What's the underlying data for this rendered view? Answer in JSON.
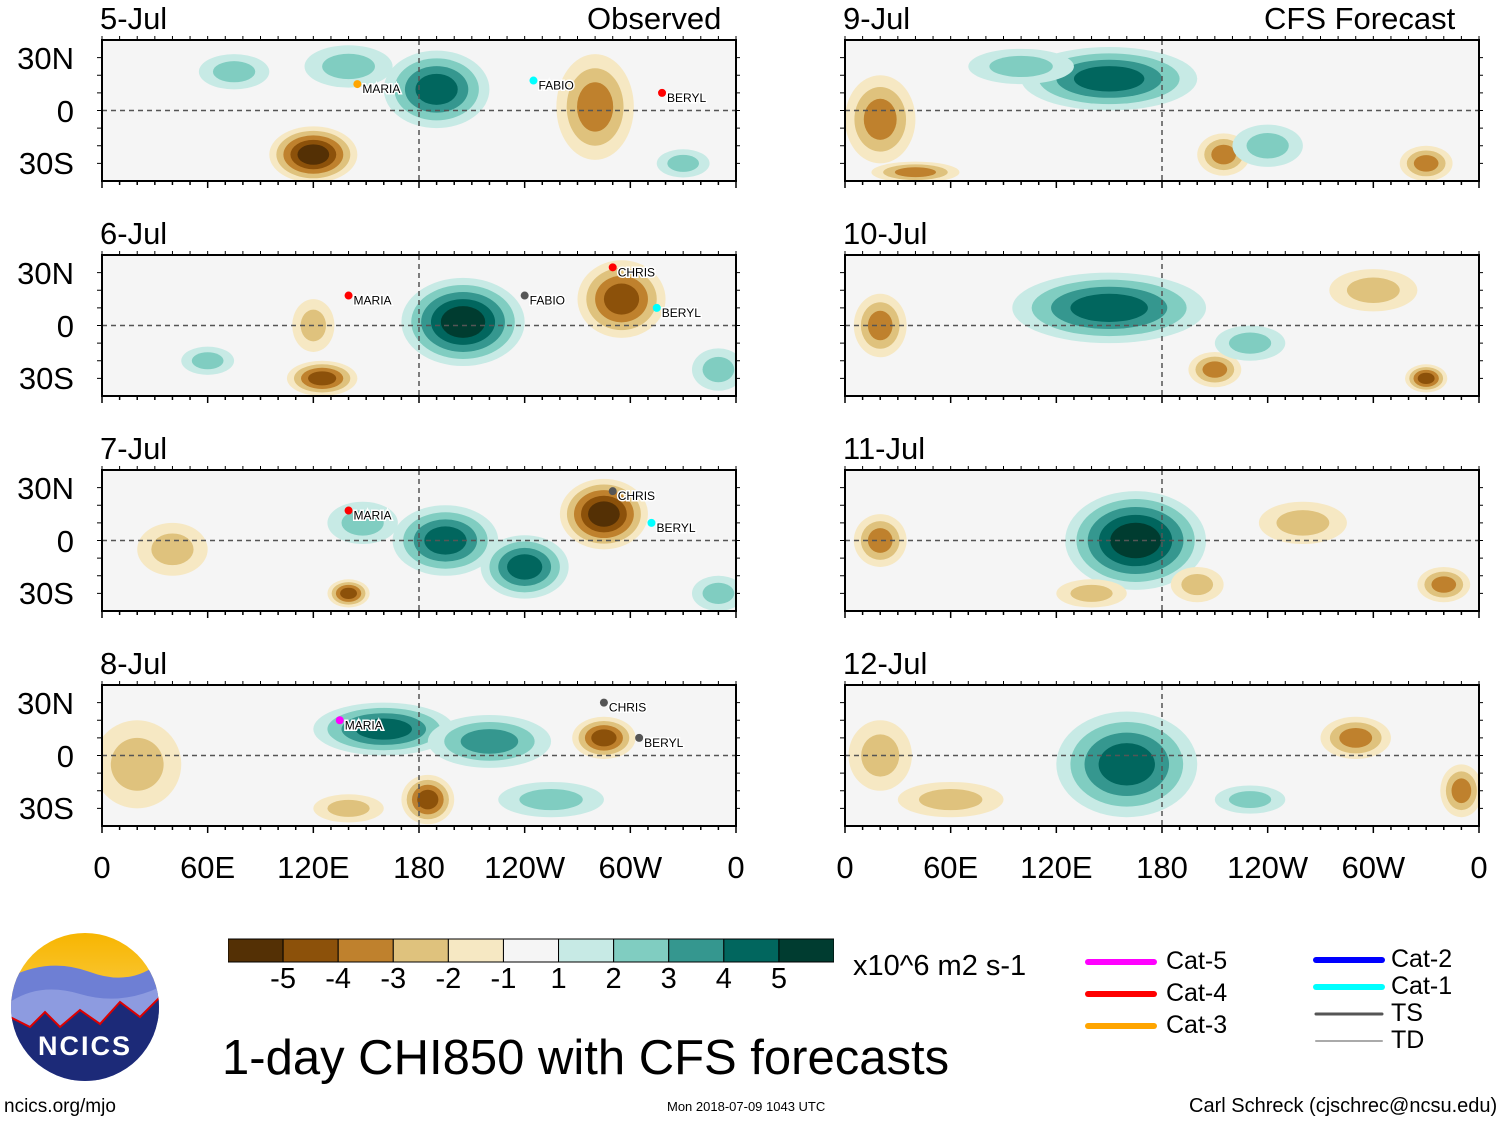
{
  "headers": {
    "observed": "Observed",
    "forecast": "CFS Forecast"
  },
  "y_ticks": [
    "30N",
    "0",
    "30S"
  ],
  "x_ticks": [
    "0",
    "60E",
    "120E",
    "180",
    "120W",
    "60W",
    "0"
  ],
  "colorbar": {
    "labels": [
      "-5",
      "-4",
      "-3",
      "-2",
      "-1",
      "1",
      "2",
      "3",
      "4",
      "5"
    ],
    "colors": [
      "#543005",
      "#8c510a",
      "#bf812d",
      "#dfc27d",
      "#f6e8c3",
      "#f5f5f5",
      "#c7eae5",
      "#80cdc1",
      "#35978f",
      "#01665e",
      "#003c30"
    ],
    "units": "x10^6 m2 s-1"
  },
  "title": "1-day CHI850 with CFS forecasts",
  "logo_text": "NCICS",
  "footer": {
    "left": "ncics.org/mjo",
    "center": "Mon 2018-07-09 1043 UTC",
    "right": "Carl Schreck (cjschrec@ncsu.edu)"
  },
  "storm_legend": [
    {
      "label": "Cat-5",
      "color": "#ff00ff"
    },
    {
      "label": "Cat-4",
      "color": "#ff0000"
    },
    {
      "label": "Cat-3",
      "color": "#ffa500"
    },
    {
      "label": "Cat-2",
      "color": "#0000ff"
    },
    {
      "label": "Cat-1",
      "color": "#00ffff"
    },
    {
      "label": "TS",
      "color": "#555555"
    },
    {
      "label": "TD",
      "color": "#aaaaaa"
    }
  ],
  "chart_data": {
    "type": "heatmap",
    "variable": "850-hPa velocity potential anomaly",
    "lon_range": [
      0,
      360
    ],
    "lat_range": [
      -40,
      40
    ],
    "panels": [
      {
        "date": "5-Jul",
        "kind": "observed",
        "blobs": [
          [
            190,
            12,
            30,
            22,
            4
          ],
          [
            120,
            -25,
            25,
            16,
            -5
          ],
          [
            280,
            2,
            22,
            30,
            -3
          ],
          [
            75,
            22,
            20,
            10,
            2
          ],
          [
            140,
            25,
            25,
            12,
            2
          ],
          [
            330,
            -30,
            15,
            8,
            1.5
          ]
        ],
        "storms": [
          {
            "name": "MARIA",
            "lon": 145,
            "lat": 15,
            "color": "#ffa500"
          },
          {
            "name": "FABIO",
            "lon": 245,
            "lat": 17,
            "color": "#00ffff"
          },
          {
            "name": "BERYL",
            "lon": 318,
            "lat": 10,
            "color": "#ff0000"
          }
        ]
      },
      {
        "date": "6-Jul",
        "kind": "observed",
        "blobs": [
          [
            205,
            2,
            35,
            25,
            5
          ],
          [
            295,
            15,
            25,
            22,
            -4
          ],
          [
            125,
            -30,
            20,
            10,
            -4
          ],
          [
            120,
            0,
            12,
            15,
            -2
          ],
          [
            60,
            -20,
            15,
            8,
            1.5
          ],
          [
            350,
            -25,
            15,
            12,
            2
          ]
        ],
        "storms": [
          {
            "name": "MARIA",
            "lon": 140,
            "lat": 17,
            "color": "#ff0000"
          },
          {
            "name": "FABIO",
            "lon": 240,
            "lat": 17,
            "color": "#555555"
          },
          {
            "name": "CHRIS",
            "lon": 290,
            "lat": 33,
            "color": "#ff0000"
          },
          {
            "name": "BERYL",
            "lon": 315,
            "lat": 10,
            "color": "#00ffff"
          }
        ]
      },
      {
        "date": "7-Jul",
        "kind": "observed",
        "blobs": [
          [
            195,
            0,
            30,
            20,
            4
          ],
          [
            240,
            -15,
            25,
            18,
            4
          ],
          [
            285,
            15,
            25,
            20,
            -5
          ],
          [
            148,
            10,
            20,
            12,
            2
          ],
          [
            140,
            -30,
            12,
            8,
            -4
          ],
          [
            350,
            -30,
            15,
            10,
            2
          ],
          [
            40,
            -5,
            20,
            15,
            -2
          ]
        ],
        "storms": [
          {
            "name": "MARIA",
            "lon": 140,
            "lat": 17,
            "color": "#ff0000"
          },
          {
            "name": "CHRIS",
            "lon": 290,
            "lat": 28,
            "color": "#555555"
          },
          {
            "name": "BERYL",
            "lon": 312,
            "lat": 10,
            "color": "#00ffff"
          }
        ]
      },
      {
        "date": "8-Jul",
        "kind": "observed",
        "blobs": [
          [
            160,
            15,
            40,
            15,
            4
          ],
          [
            220,
            8,
            35,
            15,
            3
          ],
          [
            185,
            -25,
            15,
            14,
            -4
          ],
          [
            285,
            10,
            18,
            12,
            -4
          ],
          [
            20,
            -5,
            25,
            25,
            -2
          ],
          [
            255,
            -25,
            30,
            10,
            2
          ],
          [
            140,
            -30,
            20,
            8,
            -2
          ]
        ],
        "storms": [
          {
            "name": "MARIA",
            "lon": 135,
            "lat": 20,
            "color": "#ff00ff"
          },
          {
            "name": "CHRIS",
            "lon": 285,
            "lat": 30,
            "color": "#555555"
          },
          {
            "name": "BERYL",
            "lon": 305,
            "lat": 10,
            "color": "#555555"
          }
        ]
      },
      {
        "date": "9-Jul",
        "kind": "forecast",
        "blobs": [
          [
            150,
            18,
            50,
            18,
            4
          ],
          [
            100,
            25,
            30,
            10,
            2
          ],
          [
            20,
            -5,
            20,
            25,
            -3
          ],
          [
            215,
            -25,
            15,
            12,
            -3
          ],
          [
            330,
            -30,
            15,
            10,
            -3
          ],
          [
            40,
            -35,
            25,
            6,
            -3
          ],
          [
            240,
            -20,
            20,
            12,
            2
          ]
        ],
        "storms": []
      },
      {
        "date": "10-Jul",
        "kind": "forecast",
        "blobs": [
          [
            150,
            10,
            55,
            20,
            4
          ],
          [
            20,
            0,
            15,
            18,
            -3
          ],
          [
            210,
            -25,
            15,
            10,
            -3
          ],
          [
            330,
            -30,
            12,
            8,
            -4
          ],
          [
            300,
            20,
            25,
            12,
            -2
          ],
          [
            230,
            -10,
            20,
            10,
            1.5
          ]
        ],
        "storms": []
      },
      {
        "date": "11-Jul",
        "kind": "forecast",
        "blobs": [
          [
            165,
            0,
            40,
            28,
            5
          ],
          [
            20,
            0,
            15,
            15,
            -3
          ],
          [
            140,
            -30,
            20,
            8,
            -2
          ],
          [
            340,
            -25,
            15,
            10,
            -3
          ],
          [
            260,
            10,
            25,
            12,
            -2
          ],
          [
            200,
            -25,
            15,
            10,
            -2
          ]
        ],
        "storms": []
      },
      {
        "date": "12-Jul",
        "kind": "forecast",
        "blobs": [
          [
            160,
            -5,
            40,
            30,
            4
          ],
          [
            20,
            0,
            18,
            20,
            -2
          ],
          [
            60,
            -25,
            30,
            10,
            -2
          ],
          [
            290,
            10,
            20,
            12,
            -3
          ],
          [
            350,
            -20,
            12,
            15,
            -3
          ],
          [
            230,
            -25,
            20,
            8,
            1.5
          ]
        ],
        "storms": []
      }
    ]
  }
}
